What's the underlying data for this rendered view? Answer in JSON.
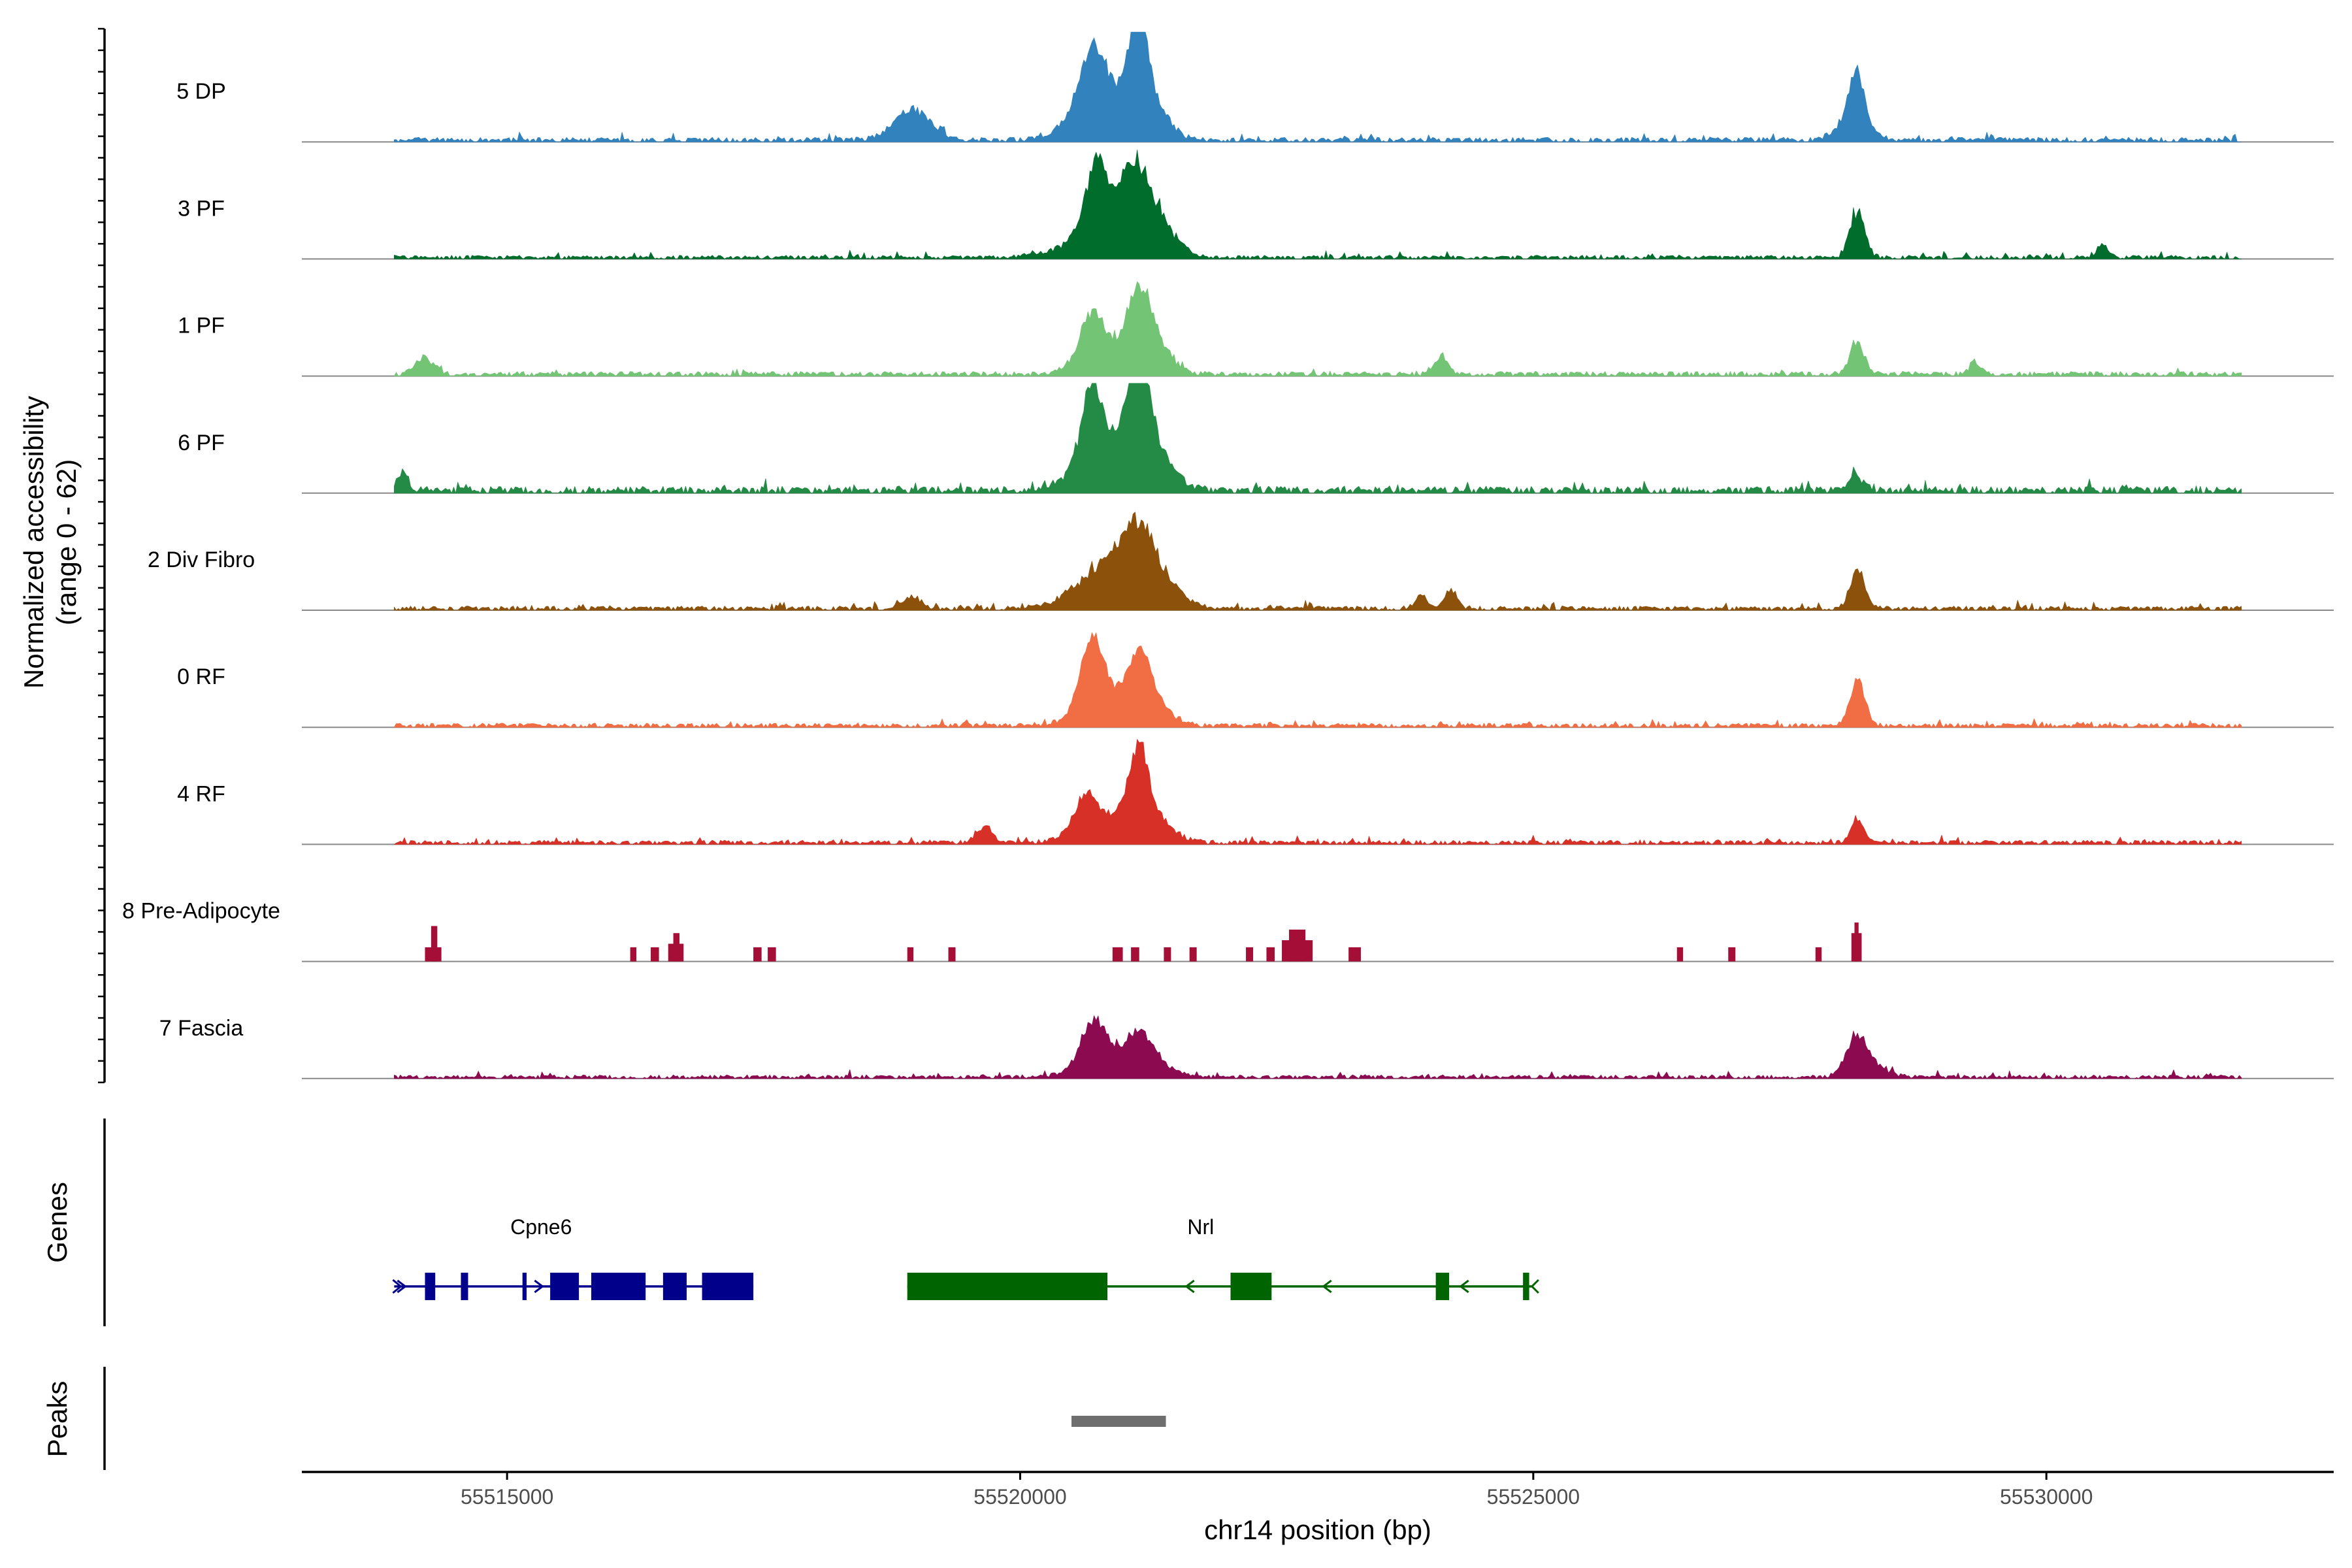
{
  "chart_data": {
    "type": "area",
    "title": "",
    "ylabel_line1": "Normalized accessibility",
    "ylabel_line2": "(range 0 - 62)",
    "ylim": [
      0,
      62
    ],
    "xlabel": "chr14 position (bp)",
    "xlim": [
      55513000,
      55532800
    ],
    "xticks": [
      55515000,
      55520000,
      55525000,
      55530000
    ],
    "xtick_labels": [
      "55515000",
      "55520000",
      "55525000",
      "55530000"
    ],
    "region": {
      "start": 55513900,
      "end": 55531900
    },
    "tracks": [
      {
        "name": "5 DP",
        "color": "#3182bd",
        "baseline": 2.0,
        "noise": 1.6,
        "peaks": [
          [
            55518950,
            180,
            16
          ],
          [
            55520700,
            120,
            32
          ],
          [
            55520780,
            260,
            22
          ],
          [
            55521150,
            70,
            48
          ],
          [
            55521200,
            180,
            30
          ],
          [
            55528150,
            70,
            30
          ],
          [
            55528120,
            150,
            12
          ]
        ]
      },
      {
        "name": "3 PF",
        "color": "#006d2c",
        "baseline": 1.6,
        "noise": 1.6,
        "peaks": [
          [
            55520750,
            110,
            42
          ],
          [
            55520850,
            350,
            14
          ],
          [
            55521000,
            70,
            8
          ],
          [
            55521120,
            110,
            32
          ],
          [
            55521300,
            180,
            20
          ],
          [
            55528160,
            70,
            26
          ],
          [
            55530550,
            50,
            7
          ]
        ]
      },
      {
        "name": "1 PF",
        "color": "#74c476",
        "baseline": 2.0,
        "noise": 1.6,
        "peaks": [
          [
            55514200,
            90,
            9
          ],
          [
            55520700,
            110,
            26
          ],
          [
            55520900,
            280,
            12
          ],
          [
            55521150,
            110,
            32
          ],
          [
            55521300,
            160,
            16
          ],
          [
            55524100,
            70,
            10
          ],
          [
            55528150,
            70,
            18
          ],
          [
            55529300,
            50,
            7
          ]
        ]
      },
      {
        "name": "6 PF",
        "color": "#238b45",
        "baseline": 3.0,
        "noise": 2.4,
        "peaks": [
          [
            55513980,
            60,
            10
          ],
          [
            55520700,
            100,
            44
          ],
          [
            55520850,
            300,
            20
          ],
          [
            55521150,
            90,
            58
          ],
          [
            55521250,
            200,
            24
          ],
          [
            55528150,
            70,
            8
          ]
        ]
      },
      {
        "name": "2 Div Fibro",
        "color": "#8c510a",
        "baseline": 1.8,
        "noise": 1.8,
        "peaks": [
          [
            55518950,
            90,
            7
          ],
          [
            55520800,
            260,
            22
          ],
          [
            55521120,
            160,
            32
          ],
          [
            55521350,
            200,
            16
          ],
          [
            55523900,
            60,
            7
          ],
          [
            55524200,
            60,
            10
          ],
          [
            55528160,
            70,
            22
          ]
        ]
      },
      {
        "name": "0 RF",
        "color": "#f16d43",
        "baseline": 1.8,
        "noise": 1.4,
        "peaks": [
          [
            55520700,
            110,
            38
          ],
          [
            55520850,
            260,
            14
          ],
          [
            55521150,
            110,
            28
          ],
          [
            55521300,
            160,
            12
          ],
          [
            55528160,
            70,
            28
          ]
        ]
      },
      {
        "name": "4 RF",
        "color": "#d73027",
        "baseline": 1.8,
        "noise": 1.6,
        "peaks": [
          [
            55519650,
            80,
            9
          ],
          [
            55520650,
            110,
            18
          ],
          [
            55520800,
            260,
            12
          ],
          [
            55521150,
            90,
            38
          ],
          [
            55521250,
            200,
            16
          ],
          [
            55528150,
            60,
            14
          ]
        ]
      },
      {
        "name": "8 Pre-Adipocyte",
        "color": "#a50f37",
        "baseline": 0,
        "noise": 0,
        "stepped": true,
        "blocks": [
          [
            55514200,
            55514360,
            8
          ],
          [
            55514260,
            55514320,
            20
          ],
          [
            55516200,
            55516260,
            8
          ],
          [
            55516400,
            55516480,
            8
          ],
          [
            55516570,
            55516720,
            10
          ],
          [
            55516620,
            55516680,
            16
          ],
          [
            55517400,
            55517480,
            8
          ],
          [
            55517540,
            55517620,
            8
          ],
          [
            55518900,
            55518960,
            8
          ],
          [
            55519300,
            55519370,
            8
          ],
          [
            55520900,
            55521000,
            8
          ],
          [
            55521080,
            55521160,
            8
          ],
          [
            55521400,
            55521470,
            8
          ],
          [
            55521650,
            55521720,
            8
          ],
          [
            55522200,
            55522270,
            8
          ],
          [
            55522400,
            55522480,
            8
          ],
          [
            55522550,
            55522850,
            12
          ],
          [
            55522620,
            55522780,
            18
          ],
          [
            55523200,
            55523320,
            8
          ],
          [
            55526400,
            55526460,
            8
          ],
          [
            55526900,
            55526970,
            8
          ],
          [
            55527750,
            55527810,
            8
          ],
          [
            55528100,
            55528200,
            16
          ],
          [
            55528130,
            55528170,
            22
          ]
        ]
      },
      {
        "name": "7 Fascia",
        "color": "#8b0a50",
        "baseline": 1.6,
        "noise": 1.6,
        "peaks": [
          [
            55520720,
            120,
            24
          ],
          [
            55520850,
            260,
            10
          ],
          [
            55521150,
            120,
            16
          ],
          [
            55521300,
            160,
            8
          ],
          [
            55528150,
            90,
            18
          ],
          [
            55528250,
            160,
            8
          ]
        ]
      }
    ],
    "genes_label": "Genes",
    "genes": [
      {
        "name": "Cpne6",
        "strand": "+",
        "color": "#00008b",
        "start": 55513900,
        "end": 55517400,
        "exons": [
          [
            55514200,
            55514300
          ],
          [
            55514550,
            55514620
          ],
          [
            55515150,
            55515190
          ],
          [
            55515420,
            55515700
          ],
          [
            55515820,
            55516350
          ],
          [
            55516520,
            55516750
          ],
          [
            55516900,
            55517400
          ]
        ]
      },
      {
        "name": "Nrl",
        "strand": "-",
        "color": "#006400",
        "start": 55518900,
        "end": 55525000,
        "exons": [
          [
            55518900,
            55520850
          ],
          [
            55522050,
            55522450
          ],
          [
            55524050,
            55524180
          ],
          [
            55524900,
            55524960
          ]
        ]
      }
    ],
    "peaks_label": "Peaks",
    "peak_regions": [
      [
        55520500,
        55521420
      ]
    ],
    "peak_color": "#6e6e6e",
    "axis_color": "#000000",
    "baseline_color": "#888888"
  }
}
